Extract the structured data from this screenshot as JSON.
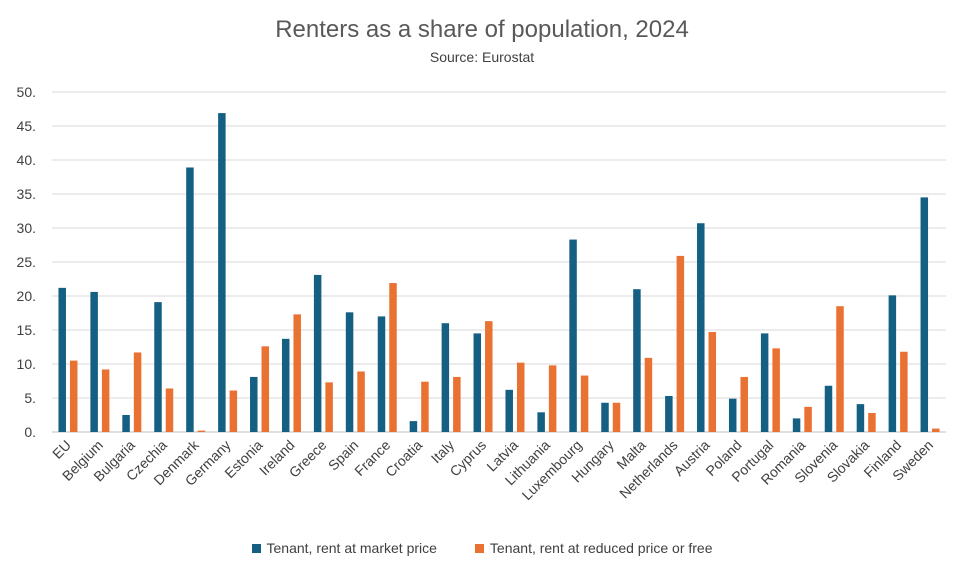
{
  "chart_data": {
    "type": "bar",
    "title": "Renters as a share of population, 2024",
    "subtitle": "Source: Eurostat",
    "xlabel": "",
    "ylabel": "",
    "ylim": [
      0,
      50
    ],
    "yticks": [
      0,
      5,
      10,
      15,
      20,
      25,
      30,
      35,
      40,
      45,
      50
    ],
    "ytick_labels": [
      "0.",
      "5.",
      "10.",
      "15.",
      "20.",
      "25.",
      "30.",
      "35.",
      "40.",
      "45.",
      "50."
    ],
    "grid": true,
    "legend_position": "bottom",
    "categories": [
      "EU",
      "Belgium",
      "Bulgaria",
      "Czechia",
      "Denmark",
      "Germany",
      "Estonia",
      "Ireland",
      "Greece",
      "Spain",
      "France",
      "Croatia",
      "Italy",
      "Cyprus",
      "Latvia",
      "Lithuania",
      "Luxembourg",
      "Hungary",
      "Malta",
      "Netherlands",
      "Austria",
      "Poland",
      "Portugal",
      "Romania",
      "Slovenia",
      "Slovakia",
      "Finland",
      "Sweden"
    ],
    "series": [
      {
        "name": "Tenant, rent at market price",
        "color": "#156082",
        "values": [
          21.2,
          20.6,
          2.5,
          19.1,
          38.9,
          46.9,
          8.1,
          13.7,
          23.1,
          17.6,
          17.0,
          1.6,
          16.0,
          14.5,
          6.2,
          2.9,
          28.3,
          4.3,
          21.0,
          5.3,
          30.7,
          4.9,
          14.5,
          2.0,
          6.8,
          4.1,
          20.1,
          34.5
        ]
      },
      {
        "name": "Tenant, rent at reduced price or free",
        "color": "#E97132",
        "values": [
          10.5,
          9.2,
          11.7,
          6.4,
          0.2,
          6.1,
          12.6,
          17.3,
          7.3,
          8.9,
          21.9,
          7.4,
          8.1,
          16.3,
          10.2,
          9.8,
          8.3,
          4.3,
          10.9,
          25.9,
          14.7,
          8.1,
          12.3,
          3.7,
          18.5,
          2.8,
          11.8,
          0.5
        ]
      }
    ]
  }
}
